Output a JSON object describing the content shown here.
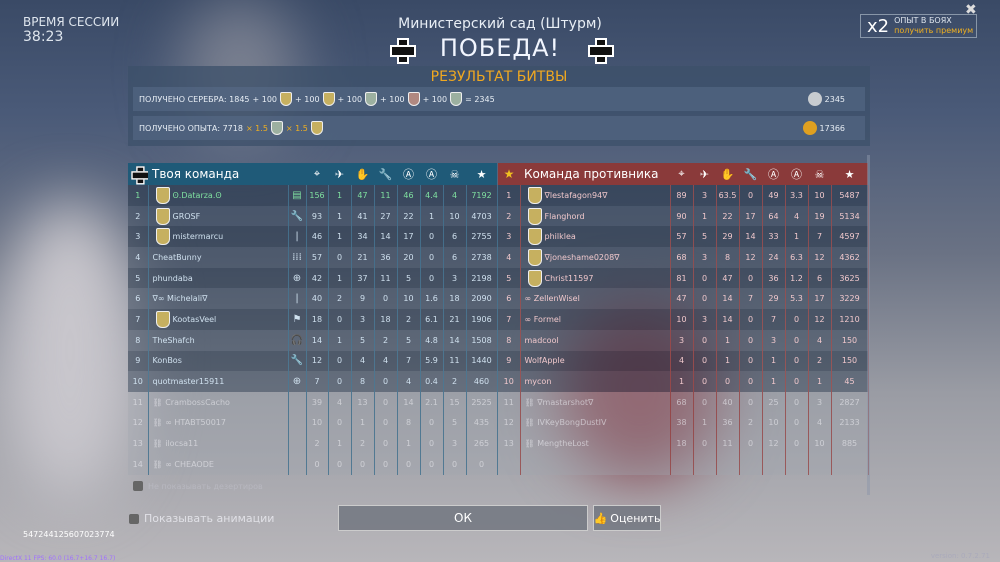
{
  "session": {
    "label": "ВРЕМЯ СЕССИИ",
    "time": "38:23"
  },
  "map": "Министерский сад (Штурм)",
  "result": "ПОБЕДА!",
  "premium": {
    "multiplier": "x2",
    "line1": "ОПЫТ В БОЯХ",
    "line2": "получить премиум"
  },
  "close_label": "✖",
  "battle_result": {
    "title": "РЕЗУЛЬТАТ БИТВЫ",
    "silver": {
      "label": "ПОЛУЧЕНО СЕРЕБРА: 1845",
      "bonuses": [
        "+ 100",
        "+ 100",
        "+ 100",
        "+ 100",
        "+ 100"
      ],
      "total": "= 2345",
      "value": "2345"
    },
    "xp": {
      "label": "ПОЛУЧЕНО ОПЫТА: 7718",
      "mult1": "× 1.5",
      "mult2": "× 1.5",
      "value": "17366"
    }
  },
  "columns_icons": [
    "crosshair-icon",
    "plane-kill-icon",
    "hand-icon",
    "wrench-icon",
    "shield-a-icon",
    "circle-a-icon",
    "skull-icon",
    "star-icon"
  ],
  "my_team": {
    "title": "Твоя команда",
    "rows": [
      {
        "n": "1",
        "name": "Ꙩ.Datarza.Ꙩ",
        "role": "▤",
        "s": [
          "156",
          "1",
          "47",
          "11",
          "46",
          "4.4",
          "4",
          "7192"
        ],
        "badge": true,
        "me": true
      },
      {
        "n": "2",
        "name": "GROSF",
        "role": "🔧",
        "s": [
          "93",
          "1",
          "41",
          "27",
          "22",
          "1",
          "10",
          "4703"
        ],
        "badge": true
      },
      {
        "n": "3",
        "name": "mistermarcu",
        "role": "|",
        "s": [
          "46",
          "1",
          "34",
          "14",
          "17",
          "0",
          "6",
          "2755"
        ],
        "badge": true
      },
      {
        "n": "4",
        "name": "CheatBunny",
        "role": "⁞⁞⁞",
        "s": [
          "57",
          "0",
          "21",
          "36",
          "20",
          "0",
          "6",
          "2738"
        ]
      },
      {
        "n": "5",
        "name": "phundaba",
        "role": "⊕",
        "s": [
          "42",
          "1",
          "37",
          "11",
          "5",
          "0",
          "3",
          "2198"
        ]
      },
      {
        "n": "6",
        "name": "∇∞ Michelali∇",
        "role": "|",
        "s": [
          "40",
          "2",
          "9",
          "0",
          "10",
          "1.6",
          "18",
          "2090"
        ]
      },
      {
        "n": "7",
        "name": "KootasVeel",
        "role": "⚑",
        "s": [
          "18",
          "0",
          "3",
          "18",
          "2",
          "6.1",
          "21",
          "1906"
        ],
        "badge": true
      },
      {
        "n": "8",
        "name": "TheShafch",
        "role": "🎧",
        "s": [
          "14",
          "1",
          "5",
          "2",
          "5",
          "4.8",
          "14",
          "1508"
        ]
      },
      {
        "n": "9",
        "name": "KonBos",
        "role": "🔧",
        "s": [
          "12",
          "0",
          "4",
          "4",
          "7",
          "5.9",
          "11",
          "1440"
        ]
      },
      {
        "n": "10",
        "name": "quotmaster15911",
        "role": "⊕",
        "s": [
          "7",
          "0",
          "8",
          "0",
          "4",
          "0.4",
          "2",
          "460"
        ]
      },
      {
        "n": "11",
        "name": "⛓ CrambossCacho",
        "role": "",
        "s": [
          "39",
          "4",
          "13",
          "0",
          "14",
          "2.1",
          "15",
          "2525"
        ],
        "dim": true
      },
      {
        "n": "12",
        "name": "⛓ ∞ HTABT50017",
        "role": "",
        "s": [
          "10",
          "0",
          "1",
          "0",
          "8",
          "0",
          "5",
          "435"
        ],
        "dim": true
      },
      {
        "n": "13",
        "name": "⛓ ilocsa11",
        "role": "",
        "s": [
          "2",
          "1",
          "2",
          "0",
          "1",
          "0",
          "3",
          "265"
        ],
        "dim": true
      },
      {
        "n": "14",
        "name": "⛓ ∞ CHEAODE",
        "role": "",
        "s": [
          "0",
          "0",
          "0",
          "0",
          "0",
          "0",
          "0",
          "0"
        ],
        "dim": true
      }
    ]
  },
  "enemy_team": {
    "title": "Команда противника",
    "rows": [
      {
        "n": "1",
        "name": "∇lestafagon94∇",
        "s": [
          "89",
          "3",
          "63.5",
          "0",
          "49",
          "3.3",
          "10",
          "5487"
        ],
        "badge": true
      },
      {
        "n": "2",
        "name": "Flanghord",
        "s": [
          "90",
          "1",
          "22",
          "17",
          "64",
          "4",
          "19",
          "5134"
        ],
        "badge": true
      },
      {
        "n": "3",
        "name": "philklea",
        "s": [
          "57",
          "5",
          "29",
          "14",
          "33",
          "1",
          "7",
          "4597"
        ],
        "badge": true
      },
      {
        "n": "4",
        "name": "∇joneshame0208∇",
        "s": [
          "68",
          "3",
          "8",
          "12",
          "24",
          "6.3",
          "12",
          "4362"
        ],
        "badge": true
      },
      {
        "n": "5",
        "name": "Christ11597",
        "s": [
          "81",
          "0",
          "47",
          "0",
          "36",
          "1.2",
          "6",
          "3625"
        ],
        "badge": true
      },
      {
        "n": "6",
        "name": "∞ ZellenWisel",
        "s": [
          "47",
          "0",
          "14",
          "7",
          "29",
          "5.3",
          "17",
          "3229"
        ]
      },
      {
        "n": "7",
        "name": "∞ Formel",
        "s": [
          "10",
          "3",
          "14",
          "0",
          "7",
          "0",
          "12",
          "1210"
        ]
      },
      {
        "n": "8",
        "name": "madcool",
        "s": [
          "3",
          "0",
          "1",
          "0",
          "3",
          "0",
          "4",
          "150"
        ]
      },
      {
        "n": "9",
        "name": "WolfApple",
        "s": [
          "4",
          "0",
          "1",
          "0",
          "1",
          "0",
          "2",
          "150"
        ]
      },
      {
        "n": "10",
        "name": "mycon",
        "s": [
          "1",
          "0",
          "0",
          "0",
          "1",
          "0",
          "1",
          "45"
        ]
      },
      {
        "n": "11",
        "name": "⛓ ∇mastarshot∇",
        "s": [
          "68",
          "0",
          "40",
          "0",
          "25",
          "0",
          "3",
          "2827"
        ],
        "dim": true
      },
      {
        "n": "12",
        "name": "⛓ IVKeyBongDustIV",
        "s": [
          "38",
          "1",
          "36",
          "2",
          "10",
          "0",
          "4",
          "2133"
        ],
        "dim": true
      },
      {
        "n": "13",
        "name": "⛓ MengtheLost",
        "s": [
          "18",
          "0",
          "11",
          "0",
          "12",
          "0",
          "10",
          "885"
        ],
        "dim": true
      }
    ]
  },
  "hide_deserters": "Не показывать дезертиров",
  "show_animations": "Показывать анимации",
  "ok_label": "ОК",
  "rate_label": "Оценить",
  "battle_id": "547244125607023774",
  "fps": "DirectX 11 FPS: 60.0 (16.7+16.7 16.7)",
  "version": "version: 0.7.2.71",
  "colors": {
    "accent": "#f0a820",
    "my_team": "#1f5a78",
    "enemy_team": "#8a3a3a",
    "me": "#7fe0a0"
  }
}
